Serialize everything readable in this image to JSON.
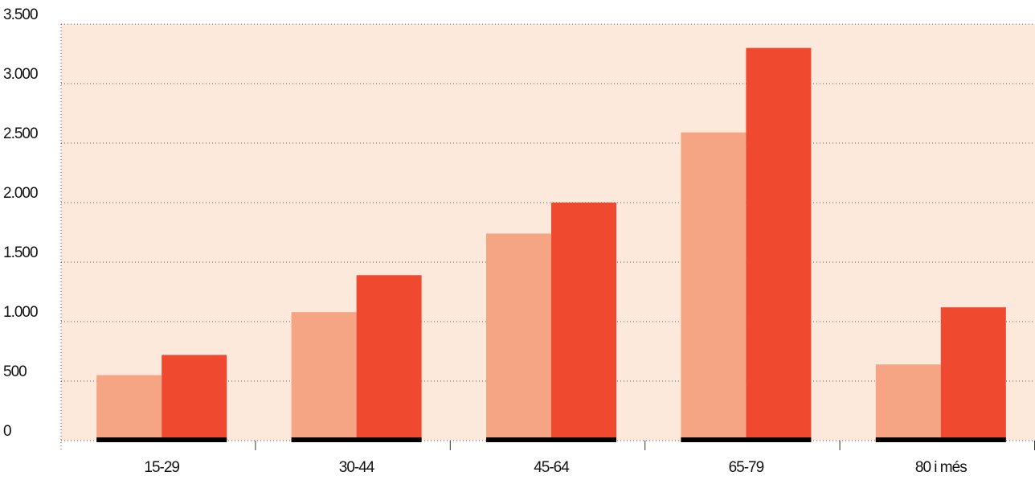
{
  "chart_data": {
    "type": "bar",
    "categories": [
      "15-29",
      "30-44",
      "45-64",
      "65-79",
      "80 i més"
    ],
    "series": [
      {
        "color": "#f6a584",
        "values": [
          550,
          1080,
          1740,
          2590,
          640
        ]
      },
      {
        "color": "#ef4930",
        "values": [
          720,
          1390,
          2000,
          3300,
          1120
        ]
      }
    ],
    "ylim": [
      0,
      3500
    ],
    "yticks": [
      0,
      500,
      {
        "value": 1000,
        "label": "1.000"
      },
      {
        "value": 1500,
        "label": "1.500"
      },
      {
        "value": 2000,
        "label": "2.000"
      },
      {
        "value": 2500,
        "label": "2.500"
      },
      {
        "value": 3000,
        "label": "3.000"
      },
      {
        "value": 3500,
        "label": "3.500"
      }
    ],
    "grid": true
  }
}
